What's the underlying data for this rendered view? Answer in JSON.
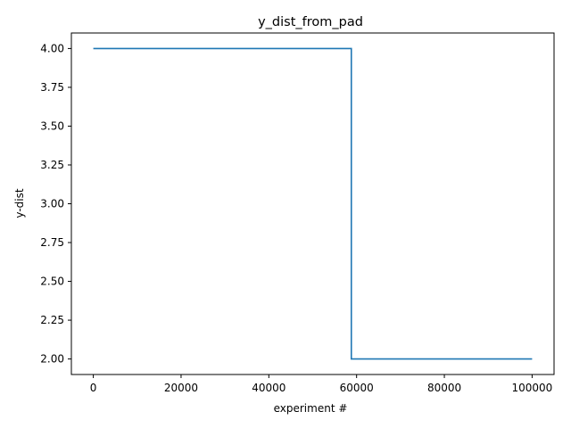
{
  "chart_data": {
    "type": "line",
    "title": "y_dist_from_pad",
    "xlabel": "experiment #",
    "ylabel": "y-dist",
    "xlim": [
      -5000,
      105000
    ],
    "ylim": [
      1.9,
      4.1
    ],
    "grid": false,
    "x_ticks": [
      0,
      20000,
      40000,
      60000,
      80000,
      100000
    ],
    "x_tick_labels": [
      "0",
      "20000",
      "40000",
      "60000",
      "80000",
      "100000"
    ],
    "y_ticks": [
      2.0,
      2.25,
      2.5,
      2.75,
      3.0,
      3.25,
      3.5,
      3.75,
      4.0
    ],
    "y_tick_labels": [
      "2.00",
      "2.25",
      "2.50",
      "2.75",
      "3.00",
      "3.25",
      "3.50",
      "3.75",
      "4.00"
    ],
    "series": [
      {
        "name": "y_dist",
        "color": "#1f77b4",
        "x": [
          0,
          58800,
          58800,
          100000
        ],
        "y": [
          4.0,
          4.0,
          2.0,
          2.0
        ]
      }
    ]
  }
}
